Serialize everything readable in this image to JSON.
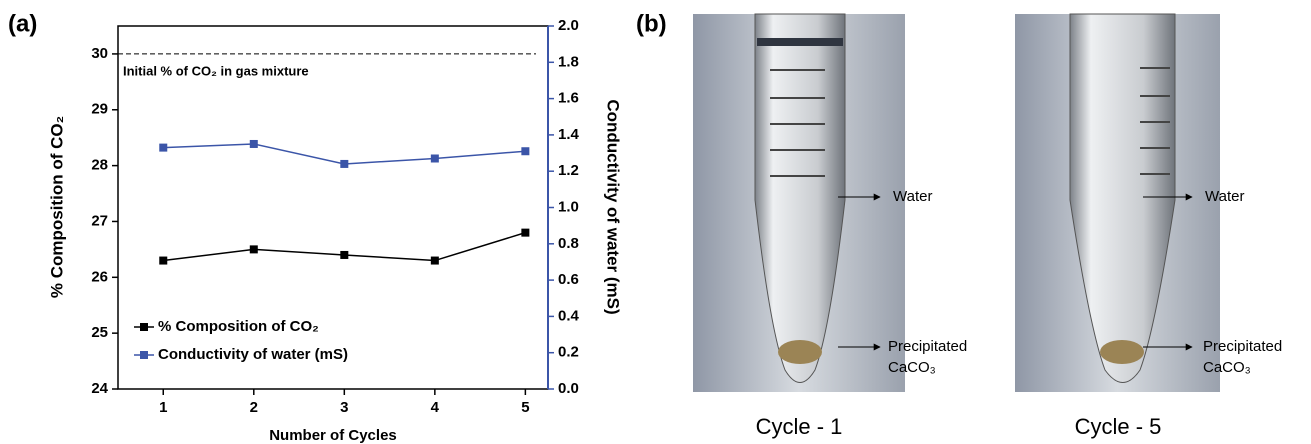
{
  "chart_data": {
    "type": "line",
    "panel_label": "(a)",
    "x_label": "Number of Cycles",
    "y_label": "% Composition of CO₂",
    "y2_label": "Conductivity of water (mS)",
    "x": [
      1,
      2,
      3,
      4,
      5
    ],
    "xlim": [
      0.5,
      5.25
    ],
    "xticks": [
      1,
      2,
      3,
      4,
      5
    ],
    "ylim": [
      24,
      30.5
    ],
    "yticks": [
      24,
      25,
      26,
      27,
      28,
      29,
      30
    ],
    "y2lim": [
      0,
      2.0
    ],
    "y2ticks": [
      {
        "value": 0,
        "label": "0.0"
      },
      0.2,
      0.4,
      0.6,
      0.8,
      {
        "value": 1,
        "label": "1.0"
      },
      1.2,
      1.4,
      1.6,
      1.8,
      {
        "value": 2,
        "label": "2.0"
      }
    ],
    "y2_color": "#3b55a8",
    "series": [
      {
        "name": "% Composition of CO₂",
        "color": "#000000",
        "values": [
          26.3,
          26.5,
          26.4,
          26.3,
          26.8
        ]
      },
      {
        "name": "Conductivity of water (mS)",
        "color": "#3b55a8",
        "axis": "y2",
        "values": [
          1.33,
          1.35,
          1.24,
          1.27,
          1.31
        ]
      }
    ],
    "reference_line": {
      "y": 30,
      "label": "Initial % of CO₂ in gas mixture"
    },
    "legend": "lower-left"
  },
  "panel_b": {
    "panel_label": "(b)",
    "photos": [
      {
        "caption": "Cycle - 1",
        "water_label": "Water",
        "precipitate_label": [
          "Precipitated",
          "CaCO₃"
        ]
      },
      {
        "caption": "Cycle - 5",
        "water_label": "Water",
        "precipitate_label": [
          "Precipitated",
          "CaCO₃"
        ]
      }
    ]
  }
}
